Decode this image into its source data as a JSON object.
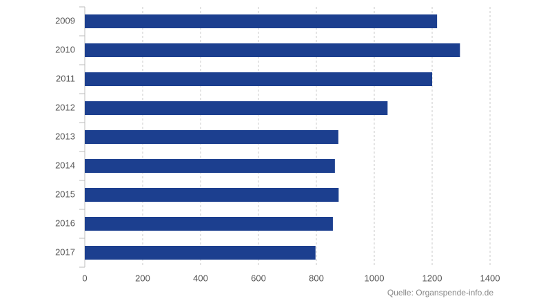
{
  "chart_data": {
    "type": "bar",
    "orientation": "horizontal",
    "categories": [
      "2009",
      "2010",
      "2011",
      "2012",
      "2013",
      "2014",
      "2015",
      "2016",
      "2017"
    ],
    "values": [
      1217,
      1296,
      1200,
      1046,
      876,
      864,
      877,
      857,
      797
    ],
    "color": "#1c3f8f",
    "xlim": [
      0,
      1400
    ],
    "xticks": [
      0,
      200,
      400,
      600,
      800,
      1000,
      1200,
      1400
    ],
    "grid": true,
    "source": "Quelle: Organspende-info.de"
  }
}
